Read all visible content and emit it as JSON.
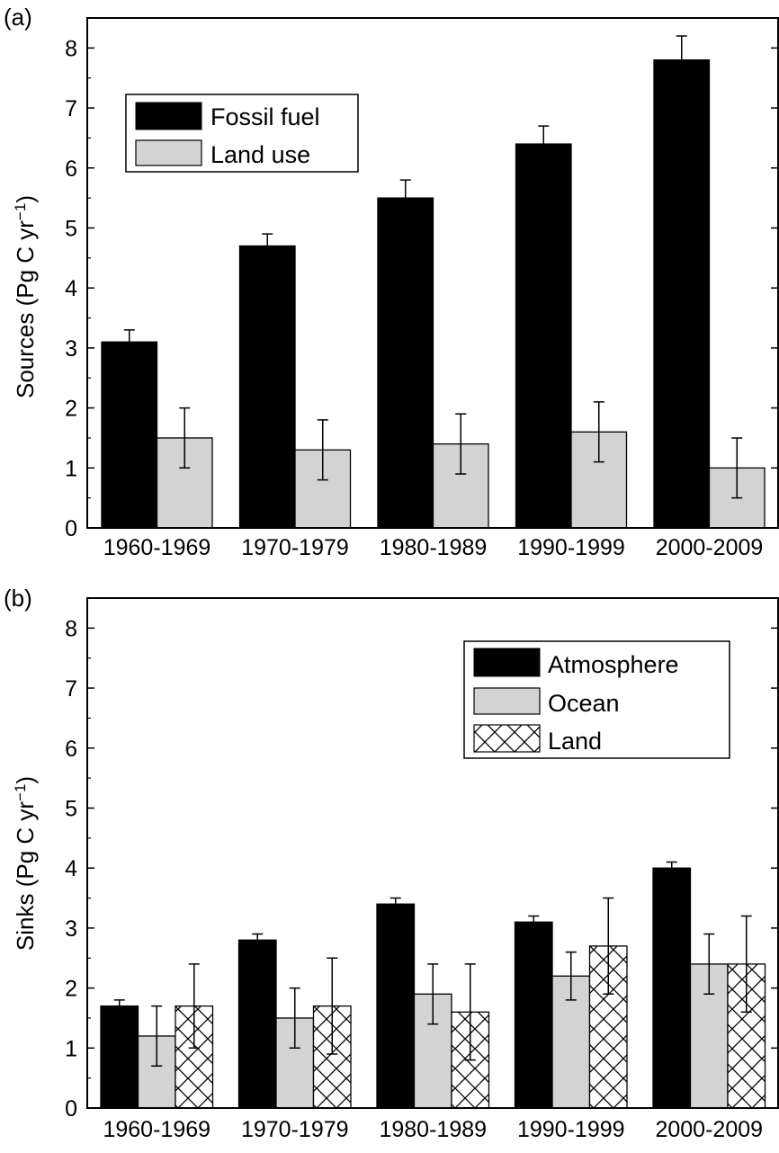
{
  "chart_data": [
    {
      "type": "bar",
      "panel_label": "(a)",
      "ylabel": "Sources (Pg C yr",
      "ylabel_sup": "−1",
      "ylabel_close": ")",
      "ylim": [
        0,
        8.5
      ],
      "yticks": [
        0,
        1,
        2,
        3,
        4,
        5,
        6,
        7,
        8
      ],
      "categories": [
        "1960-1969",
        "1970-1979",
        "1980-1989",
        "1990-1999",
        "2000-2009"
      ],
      "legend_position": "top-left",
      "series": [
        {
          "name": "Fossil fuel",
          "fill": "#000000",
          "pattern": "solid",
          "values": [
            3.1,
            4.7,
            5.5,
            6.4,
            7.8
          ],
          "errors": [
            0.2,
            0.2,
            0.3,
            0.3,
            0.4
          ]
        },
        {
          "name": "Land use",
          "fill": "#d3d3d3",
          "pattern": "solid",
          "values": [
            1.5,
            1.3,
            1.4,
            1.6,
            1.0
          ],
          "errors": [
            0.5,
            0.5,
            0.5,
            0.5,
            0.5
          ]
        }
      ]
    },
    {
      "type": "bar",
      "panel_label": "(b)",
      "ylabel": "Sinks (Pg C yr",
      "ylabel_sup": "−1",
      "ylabel_close": ")",
      "ylim": [
        0,
        8.5
      ],
      "yticks": [
        0,
        1,
        2,
        3,
        4,
        5,
        6,
        7,
        8
      ],
      "categories": [
        "1960-1969",
        "1970-1979",
        "1980-1989",
        "1990-1999",
        "2000-2009"
      ],
      "legend_position": "top-right",
      "series": [
        {
          "name": "Atmosphere",
          "fill": "#000000",
          "pattern": "solid",
          "values": [
            1.7,
            2.8,
            3.4,
            3.1,
            4.0
          ],
          "errors": [
            0.1,
            0.1,
            0.1,
            0.1,
            0.1
          ]
        },
        {
          "name": "Ocean",
          "fill": "#d3d3d3",
          "pattern": "solid",
          "values": [
            1.2,
            1.5,
            1.9,
            2.2,
            2.4
          ],
          "errors": [
            0.5,
            0.5,
            0.5,
            0.4,
            0.5
          ]
        },
        {
          "name": "Land",
          "fill": "#ffffff",
          "pattern": "crosshatch",
          "values": [
            1.7,
            1.7,
            1.6,
            2.7,
            2.4
          ],
          "errors": [
            0.7,
            0.8,
            0.8,
            0.8,
            0.8
          ]
        }
      ]
    }
  ]
}
